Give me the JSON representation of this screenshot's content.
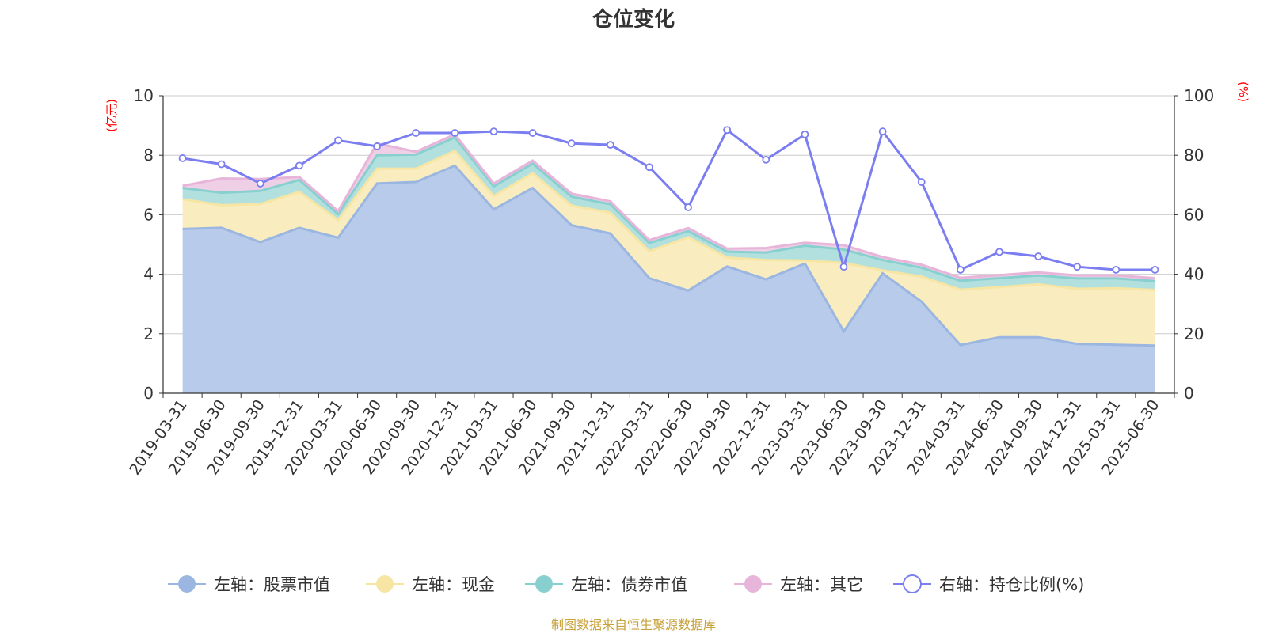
{
  "chart_data": {
    "type": "area",
    "title": "仓位变化",
    "left_axis_unit": "(亿元)",
    "right_axis_unit": "(%)",
    "ylim_left": [
      0,
      10
    ],
    "yticks_left": [
      "0",
      "2",
      "4",
      "6",
      "8",
      "10"
    ],
    "ylim_right": [
      0,
      100
    ],
    "yticks_right": [
      "0",
      "20",
      "40",
      "60",
      "80",
      "100"
    ],
    "grid": true,
    "legend_position": "bottom",
    "categories": [
      "2019-03-31",
      "2019-06-30",
      "2019-09-30",
      "2019-12-31",
      "2020-03-31",
      "2020-06-30",
      "2020-09-30",
      "2020-12-31",
      "2021-03-31",
      "2021-06-30",
      "2021-09-30",
      "2021-12-31",
      "2022-03-31",
      "2022-06-30",
      "2022-09-30",
      "2022-12-31",
      "2023-03-31",
      "2023-06-30",
      "2023-09-30",
      "2023-12-31",
      "2024-03-31",
      "2024-06-30",
      "2024-09-30",
      "2024-12-31",
      "2025-03-31",
      "2025-06-30"
    ],
    "series": [
      {
        "name": "左轴：股票市值",
        "axis": "left",
        "stack": true,
        "color": "#9bb6e0",
        "fill": "#b8cbea",
        "values": [
          5.52,
          5.56,
          5.08,
          5.56,
          5.23,
          7.05,
          7.1,
          7.65,
          6.18,
          6.9,
          5.65,
          5.37,
          3.87,
          3.45,
          4.26,
          3.83,
          4.36,
          2.08,
          4.03,
          3.08,
          1.62,
          1.88,
          1.88,
          1.66,
          1.63,
          1.6
        ]
      },
      {
        "name": "左轴：现金",
        "axis": "left",
        "stack": true,
        "color": "#f7e5a4",
        "fill": "#f9edbf",
        "values": [
          1.0,
          0.76,
          1.28,
          1.21,
          0.59,
          0.5,
          0.45,
          0.5,
          0.45,
          0.5,
          0.66,
          0.7,
          0.9,
          1.8,
          0.3,
          0.65,
          0.1,
          2.3,
          0.1,
          0.84,
          1.86,
          1.69,
          1.78,
          1.85,
          1.9,
          1.87
        ]
      },
      {
        "name": "左轴：债券市值",
        "axis": "left",
        "stack": true,
        "color": "#88d0cf",
        "fill": "#b2e0de",
        "values": [
          0.38,
          0.42,
          0.44,
          0.4,
          0.2,
          0.45,
          0.47,
          0.45,
          0.32,
          0.32,
          0.3,
          0.28,
          0.28,
          0.2,
          0.2,
          0.25,
          0.5,
          0.45,
          0.35,
          0.3,
          0.3,
          0.3,
          0.3,
          0.35,
          0.33,
          0.3
        ]
      },
      {
        "name": "左轴：其它",
        "axis": "left",
        "stack": true,
        "color": "#e7b5d9",
        "fill": "#efcfe6",
        "values": [
          0.07,
          0.48,
          0.4,
          0.1,
          0.1,
          0.4,
          0.1,
          0.1,
          0.1,
          0.1,
          0.1,
          0.1,
          0.1,
          0.1,
          0.1,
          0.15,
          0.1,
          0.15,
          0.1,
          0.1,
          0.1,
          0.1,
          0.1,
          0.1,
          0.1,
          0.1
        ]
      },
      {
        "name": "右轴：持仓比例(%)",
        "axis": "right",
        "stack": false,
        "color": "#7b7ef0",
        "values": [
          79,
          77,
          70.5,
          76.5,
          85,
          83,
          87.5,
          87.5,
          88,
          87.5,
          84,
          83.5,
          76,
          62.5,
          88.5,
          78.5,
          87,
          42.5,
          88,
          71,
          41.5,
          47.5,
          46,
          42.5,
          41.5,
          41.5
        ]
      }
    ]
  },
  "footer": "制图数据来自恒生聚源数据库"
}
